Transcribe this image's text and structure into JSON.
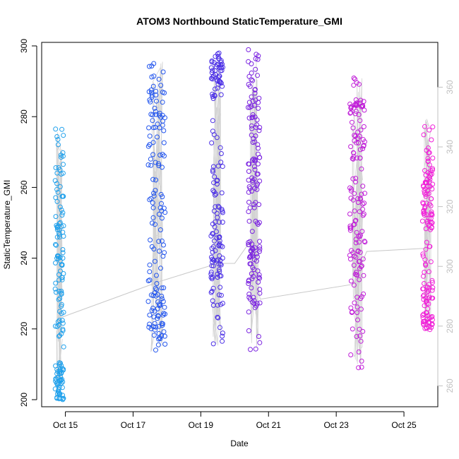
{
  "chart_data": {
    "type": "scatter",
    "title": "ATOM3 Northbound StaticTemperature_GMI",
    "xlabel": "Date",
    "ylabel": "StaticTemperature_GMI",
    "x_ticks": [
      "Oct 15",
      "Oct 17",
      "Oct 19",
      "Oct 21",
      "Oct 23",
      "Oct 25"
    ],
    "x_tick_values": [
      15,
      17,
      19,
      21,
      23,
      25
    ],
    "xlim": [
      14.3,
      26.0
    ],
    "ylim": [
      198,
      301
    ],
    "y_ticks": [
      200,
      220,
      240,
      260,
      280,
      300
    ],
    "right_axis": {
      "color": "#c0c0c0",
      "ticks": [
        260,
        280,
        300,
        320,
        340,
        360
      ],
      "ylim": [
        253,
        375
      ]
    },
    "grid": false,
    "legend": "none",
    "marker": "open-circle",
    "clusters": [
      {
        "x_range": [
          14.7,
          14.95
        ],
        "y_range": [
          200,
          278
        ],
        "color": "#1ea0ec",
        "bands": [
          [
            200,
            210
          ],
          [
            218,
            262
          ]
        ]
      },
      {
        "x_range": [
          17.45,
          17.95
        ],
        "y_range": [
          213,
          296
        ],
        "color": "#2255ee",
        "bands": [
          [
            217,
            232
          ],
          [
            245,
            292
          ]
        ]
      },
      {
        "x_range": [
          19.3,
          19.65
        ],
        "y_range": [
          214,
          299
        ],
        "color": "#4a2ee6",
        "bands": [
          [
            230,
            262
          ],
          [
            285,
            299
          ]
        ]
      },
      {
        "x_range": [
          20.4,
          20.75
        ],
        "y_range": [
          214,
          299
        ],
        "color": "#7a22e0",
        "bands": [
          [
            226,
            246
          ],
          [
            255,
            298
          ]
        ]
      },
      {
        "x_range": [
          23.4,
          23.85
        ],
        "y_range": [
          209,
          291
        ],
        "color": "#c01ed8",
        "bands": [
          [
            232,
            262
          ],
          [
            268,
            285
          ]
        ]
      },
      {
        "x_range": [
          25.55,
          25.85
        ],
        "y_range": [
          219,
          281
        ],
        "color": "#f020d8",
        "bands": [
          [
            220,
            232
          ],
          [
            248,
            266
          ]
        ]
      }
    ],
    "secondary_track": {
      "color": "#c8c8c8",
      "points": [
        [
          14.9,
          283
        ],
        [
          17.8,
          295
        ],
        [
          19.5,
          301
        ],
        [
          20.0,
          301
        ],
        [
          20.5,
          309
        ],
        [
          20.75,
          289
        ],
        [
          23.5,
          294
        ],
        [
          23.9,
          305
        ],
        [
          25.6,
          306
        ]
      ]
    }
  }
}
